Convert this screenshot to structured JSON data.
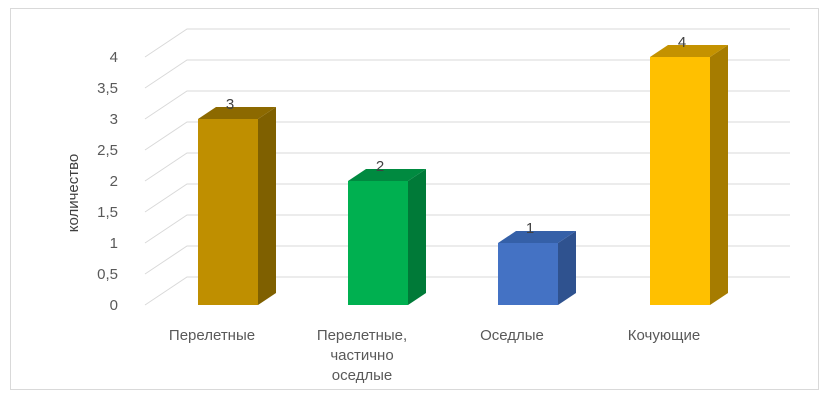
{
  "chart_data": {
    "type": "bar",
    "style": "3d-column",
    "title": "",
    "xlabel": "",
    "ylabel": "количество",
    "categories": [
      [
        "Перелетные"
      ],
      [
        "Перелетные,",
        "частично",
        "оседлые"
      ],
      [
        "Оседлые"
      ],
      [
        "Кочующие"
      ]
    ],
    "values": [
      3,
      2,
      1,
      4
    ],
    "data_labels": [
      "3",
      "2",
      "1",
      "4"
    ],
    "colors": [
      "#BF8F00",
      "#00B050",
      "#4472C4",
      "#FFC000"
    ],
    "side_colors": [
      "#7F6000",
      "#007A38",
      "#2F528F",
      "#A67C00"
    ],
    "top_colors": [
      "#8C6900",
      "#008A40",
      "#3560A8",
      "#C49200"
    ],
    "ylim": [
      0,
      4
    ],
    "y_ticks": [
      "0",
      "0,5",
      "1",
      "1,5",
      "2",
      "2,5",
      "3",
      "3,5",
      "4"
    ],
    "grid": true,
    "legend": "none"
  }
}
